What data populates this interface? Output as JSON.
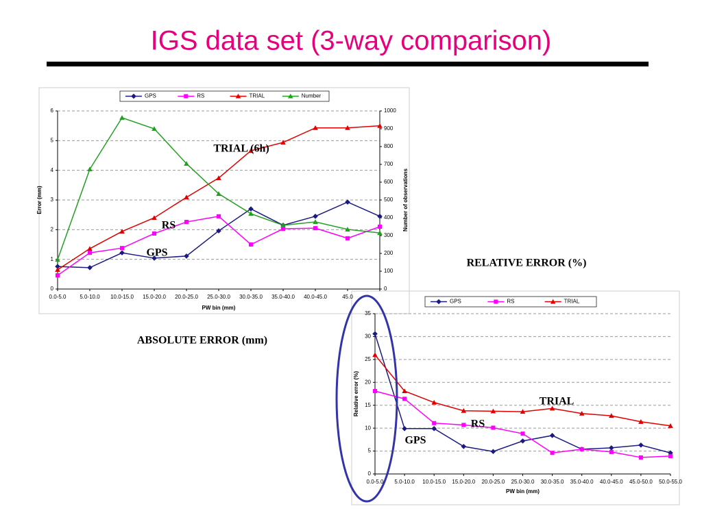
{
  "title": "IGS data set (3-way comparison)",
  "chart_data": [
    {
      "type": "line",
      "xlabel": "PW bin (mm)",
      "ylabel": "Error (mm)",
      "y2label": "Number of observations",
      "categories": [
        "0.0-5.0",
        "5.0-10.0",
        "10.0-15.0",
        "15.0-20.0",
        "20.0-25.0",
        "25.0-30.0",
        "30.0-35.0",
        "35.0-40.0",
        "40.0-45.0",
        "45.0",
        null
      ],
      "series": [
        {
          "name": "GPS",
          "color": "#1a1a80",
          "marker": "diamond",
          "values": [
            0.76,
            0.72,
            1.22,
            1.04,
            1.11,
            1.96,
            2.7,
            2.15,
            2.45,
            2.93,
            2.45
          ]
        },
        {
          "name": "RS",
          "color": "#ff00ff",
          "marker": "square",
          "values": [
            0.46,
            1.22,
            1.38,
            1.87,
            2.26,
            2.45,
            1.5,
            2.03,
            2.05,
            1.71,
            2.1
          ]
        },
        {
          "name": "TRIAL",
          "color": "#e00000",
          "marker": "triangle",
          "values": [
            0.65,
            1.36,
            1.94,
            2.4,
            3.09,
            3.74,
            4.66,
            4.94,
            5.43,
            5.43,
            5.5
          ]
        },
        {
          "name": "Number",
          "color": "#22a022",
          "marker": "triangle",
          "axis": "y2",
          "values": [
            165,
            673,
            962,
            900,
            704,
            535,
            423,
            358,
            377,
            335,
            315
          ]
        }
      ],
      "ylim": [
        0,
        6
      ],
      "yticks": [
        0,
        1,
        2,
        3,
        4,
        5,
        6
      ],
      "y2lim": [
        0,
        1000
      ],
      "y2ticks": [
        0,
        100,
        200,
        300,
        400,
        500,
        600,
        700,
        800,
        900,
        1000
      ],
      "grid": true,
      "annotations": [
        "TRIAL (6h)",
        "RS",
        "GPS"
      ],
      "caption": "ABSOLUTE ERROR (mm)"
    },
    {
      "type": "line",
      "xlabel": "PW bin (mm)",
      "ylabel": "Relative error (%)",
      "categories": [
        "0.0-5.0",
        "5.0-10.0",
        "10.0-15.0",
        "15.0-20.0",
        "20.0-25.0",
        "25.0-30.0",
        "30.0-35.0",
        "35.0-40.0",
        "40.0-45.0",
        "45.0-50.0",
        "50.0-55.0"
      ],
      "series": [
        {
          "name": "GPS",
          "color": "#1a1a80",
          "marker": "diamond",
          "values": [
            30.6,
            9.9,
            9.9,
            6.0,
            4.9,
            7.2,
            8.4,
            5.4,
            5.7,
            6.3,
            4.6
          ]
        },
        {
          "name": "RS",
          "color": "#ff00ff",
          "marker": "square",
          "values": [
            18.1,
            16.4,
            11.1,
            10.7,
            10.1,
            8.8,
            4.6,
            5.4,
            4.8,
            3.6,
            3.9
          ]
        },
        {
          "name": "TRIAL",
          "color": "#e00000",
          "marker": "triangle",
          "values": [
            26.0,
            18.1,
            15.6,
            13.8,
            13.7,
            13.6,
            14.3,
            13.2,
            12.7,
            11.4,
            10.5
          ]
        }
      ],
      "ylim": [
        0,
        35
      ],
      "yticks": [
        0,
        5,
        10,
        15,
        20,
        25,
        30,
        35
      ],
      "grid": true,
      "annotations": [
        "TRIAL",
        "RS",
        "GPS"
      ],
      "caption": "RELATIVE ERROR (%)"
    }
  ]
}
